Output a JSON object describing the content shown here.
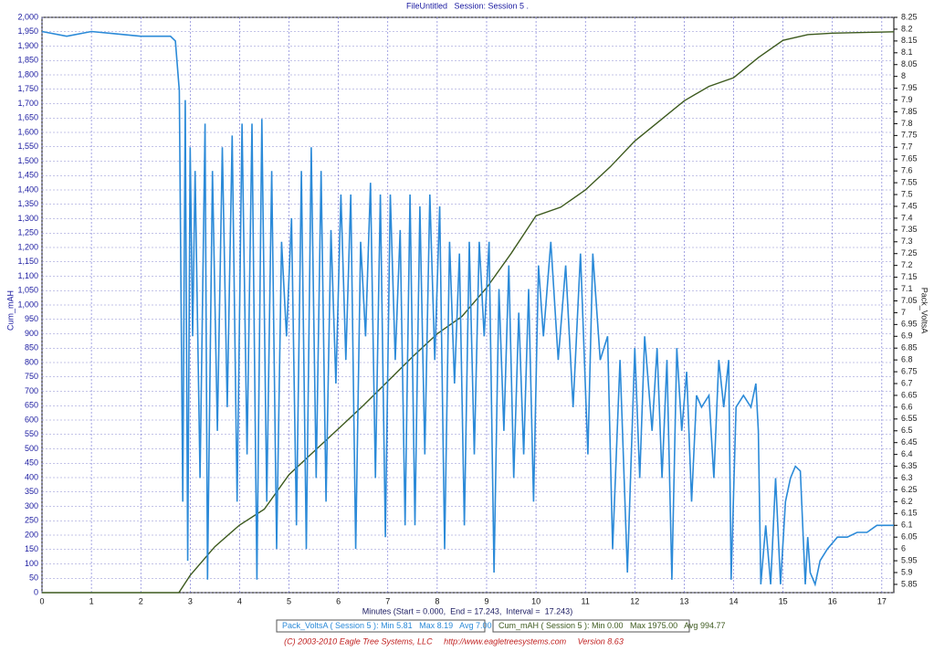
{
  "chart_data": {
    "type": "line",
    "title": "FileUntitled   Session: Session 5 .",
    "x_label": "Minutes (Start = 0.000,  End = 17.243,  Interval =  17.243)",
    "y_label": "Cum_mAH",
    "y2_label": "Pack_VoltsA",
    "footer": "(C) 2003-2010 Eagle Tree Systems, LLC     http://www.eagletreesystems.com     Version 8.63",
    "grid": true,
    "xlim": [
      0,
      17.243
    ],
    "xticks": [
      0,
      1,
      2,
      3,
      4,
      5,
      6,
      7,
      8,
      9,
      10,
      11,
      12,
      13,
      14,
      15,
      16,
      17
    ],
    "ylim": [
      0,
      2000
    ],
    "yticks": [
      0,
      50,
      100,
      150,
      200,
      250,
      300,
      350,
      400,
      450,
      500,
      550,
      600,
      650,
      700,
      750,
      800,
      850,
      900,
      950,
      {
        "value": 1000,
        "label": "1,000"
      },
      {
        "value": 1050,
        "label": "1,050"
      },
      {
        "value": 1100,
        "label": "1,100"
      },
      {
        "value": 1150,
        "label": "1,150"
      },
      {
        "value": 1200,
        "label": "1,200"
      },
      {
        "value": 1250,
        "label": "1,250"
      },
      {
        "value": 1300,
        "label": "1,300"
      },
      {
        "value": 1350,
        "label": "1,350"
      },
      {
        "value": 1400,
        "label": "1,400"
      },
      {
        "value": 1450,
        "label": "1,450"
      },
      {
        "value": 1500,
        "label": "1,500"
      },
      {
        "value": 1550,
        "label": "1,550"
      },
      {
        "value": 1600,
        "label": "1,600"
      },
      {
        "value": 1650,
        "label": "1,650"
      },
      {
        "value": 1700,
        "label": "1,700"
      },
      {
        "value": 1750,
        "label": "1,750"
      },
      {
        "value": 1800,
        "label": "1,800"
      },
      {
        "value": 1850,
        "label": "1,850"
      },
      {
        "value": 1900,
        "label": "1,900"
      },
      {
        "value": 1950,
        "label": "1,950"
      },
      {
        "value": 2000,
        "label": "2,000"
      }
    ],
    "y2lim": [
      5.815,
      8.25
    ],
    "y2ticks": [
      5.85,
      5.9,
      5.95,
      6,
      6.05,
      6.1,
      6.15,
      6.2,
      6.25,
      6.3,
      6.35,
      6.4,
      6.45,
      6.5,
      6.55,
      6.6,
      6.65,
      6.7,
      6.75,
      6.8,
      6.85,
      6.9,
      6.95,
      7,
      7.05,
      7.1,
      7.15,
      7.2,
      7.25,
      7.3,
      7.35,
      7.4,
      7.45,
      7.5,
      7.55,
      7.6,
      7.65,
      7.7,
      7.75,
      7.8,
      7.85,
      7.9,
      7.95,
      8,
      8.05,
      8.1,
      8.15,
      8.2,
      8.25
    ],
    "series": [
      {
        "name": "Pack_VoltsA ( Session 5 )",
        "stats": ": Min 5.81   Max 8.19   Avg 7.00",
        "color": "#2b8ad8",
        "axis": "y2",
        "x": [
          0,
          0.5,
          1.0,
          1.5,
          2.0,
          2.6,
          2.7,
          2.78,
          2.85,
          2.9,
          2.95,
          3.0,
          3.05,
          3.1,
          3.2,
          3.3,
          3.35,
          3.45,
          3.55,
          3.65,
          3.75,
          3.85,
          3.95,
          4.05,
          4.15,
          4.25,
          4.35,
          4.45,
          4.55,
          4.65,
          4.75,
          4.85,
          4.95,
          5.05,
          5.15,
          5.25,
          5.35,
          5.45,
          5.55,
          5.65,
          5.75,
          5.85,
          5.95,
          6.05,
          6.15,
          6.25,
          6.35,
          6.45,
          6.55,
          6.65,
          6.75,
          6.85,
          6.95,
          7.05,
          7.15,
          7.25,
          7.35,
          7.45,
          7.55,
          7.65,
          7.75,
          7.85,
          7.95,
          8.05,
          8.15,
          8.25,
          8.35,
          8.45,
          8.55,
          8.65,
          8.75,
          8.85,
          8.95,
          9.05,
          9.15,
          9.25,
          9.35,
          9.45,
          9.55,
          9.65,
          9.75,
          9.85,
          9.95,
          10.05,
          10.15,
          10.3,
          10.45,
          10.6,
          10.75,
          10.9,
          11.05,
          11.15,
          11.3,
          11.45,
          11.55,
          11.7,
          11.85,
          12.0,
          12.1,
          12.2,
          12.35,
          12.45,
          12.55,
          12.65,
          12.75,
          12.85,
          12.95,
          13.05,
          13.15,
          13.25,
          13.35,
          13.5,
          13.6,
          13.7,
          13.8,
          13.9,
          13.95,
          14.05,
          14.2,
          14.35,
          14.45,
          14.5,
          14.55,
          14.65,
          14.75,
          14.85,
          14.95,
          15.05,
          15.15,
          15.25,
          15.35,
          15.45,
          15.5,
          15.55,
          15.65,
          15.75,
          15.9,
          16.1,
          16.3,
          16.5,
          16.7,
          16.9,
          17.1,
          17.243
        ],
        "values": [
          8.19,
          8.17,
          8.19,
          8.18,
          8.17,
          8.17,
          8.15,
          7.94,
          6.2,
          7.9,
          5.95,
          7.7,
          6.9,
          7.6,
          6.3,
          7.8,
          5.87,
          7.6,
          6.5,
          7.7,
          6.6,
          7.75,
          6.2,
          7.8,
          6.4,
          7.8,
          5.87,
          7.82,
          6.2,
          7.6,
          6.0,
          7.3,
          6.9,
          7.4,
          6.1,
          7.6,
          6.0,
          7.7,
          6.3,
          7.6,
          6.2,
          7.35,
          6.7,
          7.5,
          6.8,
          7.5,
          6.0,
          7.3,
          6.9,
          7.55,
          6.3,
          7.5,
          6.05,
          7.5,
          6.8,
          7.35,
          6.1,
          7.5,
          6.1,
          7.45,
          6.4,
          7.5,
          6.8,
          7.45,
          6.0,
          7.3,
          6.7,
          7.25,
          6.1,
          7.3,
          6.4,
          7.3,
          6.9,
          7.3,
          5.9,
          7.1,
          6.5,
          7.2,
          6.3,
          7.0,
          6.4,
          7.1,
          6.2,
          7.2,
          6.9,
          7.3,
          6.8,
          7.2,
          6.6,
          7.25,
          6.4,
          7.25,
          6.8,
          6.9,
          6.0,
          6.8,
          5.9,
          6.85,
          6.3,
          6.9,
          6.5,
          6.85,
          6.3,
          6.8,
          5.87,
          6.85,
          6.5,
          6.75,
          6.2,
          6.65,
          6.6,
          6.65,
          6.3,
          6.8,
          6.6,
          6.8,
          5.87,
          6.6,
          6.65,
          6.6,
          6.7,
          6.5,
          5.85,
          6.1,
          5.85,
          6.3,
          5.85,
          6.2,
          6.3,
          6.35,
          6.33,
          5.85,
          6.05,
          5.9,
          5.85,
          5.95,
          6.0,
          6.05,
          6.05,
          6.07,
          6.07,
          6.1,
          6.1,
          6.1
        ]
      },
      {
        "name": "Cum_mAH ( Session 5 )",
        "stats": ": Min 0.00   Max 1975.00   Avg 994.77",
        "color": "#3d5a1e",
        "axis": "y",
        "x": [
          0,
          2.77,
          3.0,
          3.5,
          4.0,
          4.5,
          5.0,
          5.5,
          6.0,
          6.5,
          7.0,
          7.5,
          8.0,
          8.5,
          9.0,
          9.5,
          10.0,
          10.5,
          11.0,
          11.5,
          12.0,
          12.5,
          13.0,
          13.5,
          14.0,
          14.5,
          15.0,
          15.5,
          16.0,
          17.243
        ],
        "values": [
          0,
          0,
          60,
          160,
          235,
          290,
          410,
          490,
          570,
          650,
          735,
          820,
          900,
          960,
          1060,
          1180,
          1310,
          1340,
          1400,
          1480,
          1570,
          1640,
          1710,
          1760,
          1790,
          1860,
          1920,
          1940,
          1945,
          1950
        ]
      }
    ]
  }
}
